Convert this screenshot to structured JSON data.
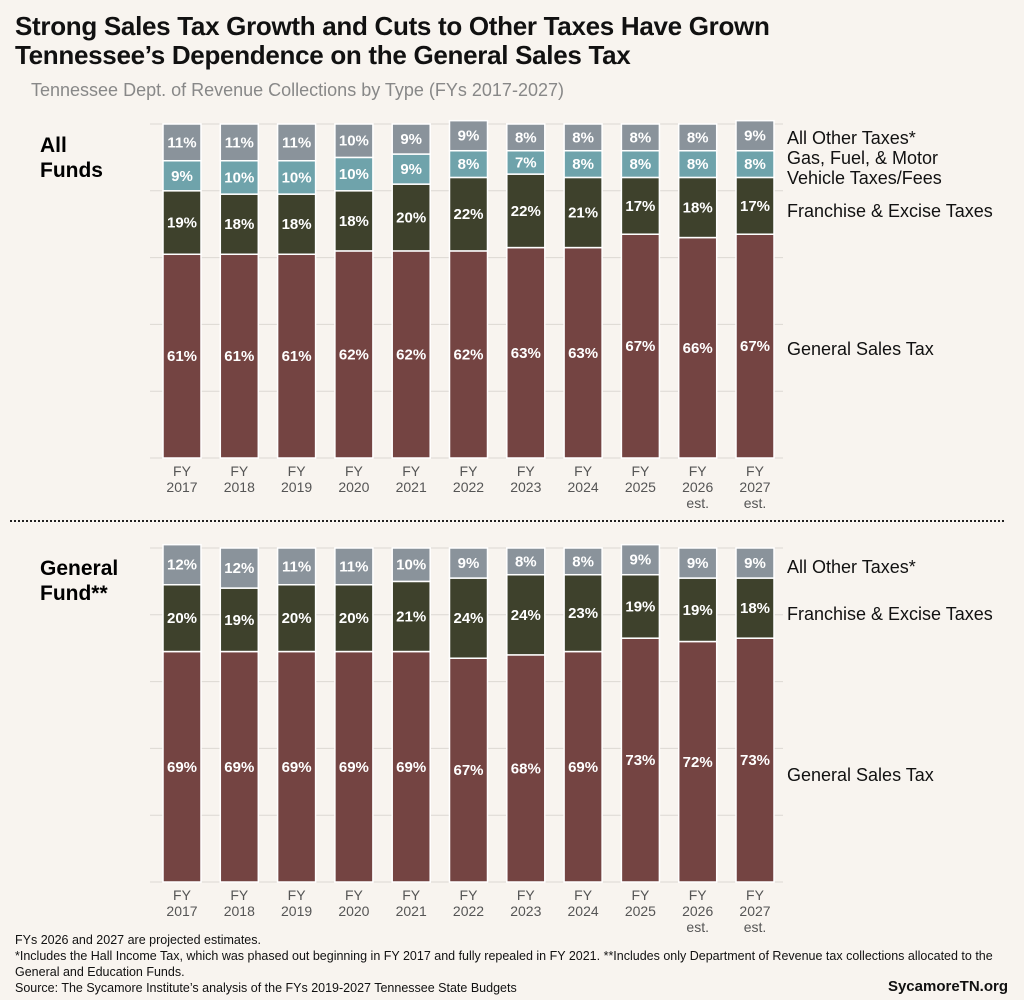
{
  "title_line1": "Strong Sales Tax Growth and Cuts to Other Taxes Have Grown",
  "title_line2": "Tennessee’s Dependence on the General Sales Tax",
  "subtitle": "Tennessee Dept. of Revenue Collections by Type (FYs 2017-2027)",
  "colors": {
    "sales": "#744442",
    "franchise": "#3e412c",
    "gas": "#6fa3ab",
    "other": "#8a939b",
    "background": "#f8f4ef"
  },
  "chart_data": [
    {
      "type": "bar",
      "stacked": true,
      "panel_label_line1": "All",
      "panel_label_line2": "Funds",
      "categories": [
        [
          "FY",
          "2017"
        ],
        [
          "FY",
          "2018"
        ],
        [
          "FY",
          "2019"
        ],
        [
          "FY",
          "2020"
        ],
        [
          "FY",
          "2021"
        ],
        [
          "FY",
          "2022"
        ],
        [
          "FY",
          "2023"
        ],
        [
          "FY",
          "2024"
        ],
        [
          "FY",
          "2025"
        ],
        [
          "FY",
          "2026",
          "est."
        ],
        [
          "FY",
          "2027",
          "est."
        ]
      ],
      "ylim": [
        0,
        100
      ],
      "grid": true,
      "series": [
        {
          "name": "General Sales Tax",
          "key": "sales",
          "values": [
            61,
            61,
            61,
            62,
            62,
            62,
            63,
            63,
            67,
            66,
            67
          ]
        },
        {
          "name": "Franchise & Excise Taxes",
          "key": "franchise",
          "values": [
            19,
            18,
            18,
            18,
            20,
            22,
            22,
            21,
            17,
            18,
            17
          ]
        },
        {
          "name": "Gas, Fuel, & Motor Vehicle Taxes/Fees",
          "key": "gas",
          "values": [
            9,
            10,
            10,
            10,
            9,
            8,
            7,
            8,
            8,
            8,
            8
          ]
        },
        {
          "name": "All Other Taxes*",
          "key": "other",
          "values": [
            11,
            11,
            11,
            10,
            9,
            9,
            8,
            8,
            8,
            8,
            9
          ]
        }
      ],
      "legend_labels": {
        "other": "All Other Taxes*",
        "gas_line1": "Gas, Fuel, & Motor",
        "gas_line2": "Vehicle Taxes/Fees",
        "franchise": "Franchise & Excise Taxes",
        "sales": "General Sales Tax"
      }
    },
    {
      "type": "bar",
      "stacked": true,
      "panel_label_line1": "General",
      "panel_label_line2": "Fund**",
      "categories": [
        [
          "FY",
          "2017"
        ],
        [
          "FY",
          "2018"
        ],
        [
          "FY",
          "2019"
        ],
        [
          "FY",
          "2020"
        ],
        [
          "FY",
          "2021"
        ],
        [
          "FY",
          "2022"
        ],
        [
          "FY",
          "2023"
        ],
        [
          "FY",
          "2024"
        ],
        [
          "FY",
          "2025"
        ],
        [
          "FY",
          "2026",
          "est."
        ],
        [
          "FY",
          "2027",
          "est."
        ]
      ],
      "ylim": [
        0,
        100
      ],
      "grid": true,
      "series": [
        {
          "name": "General Sales Tax",
          "key": "sales",
          "values": [
            69,
            69,
            69,
            69,
            69,
            67,
            68,
            69,
            73,
            72,
            73
          ]
        },
        {
          "name": "Franchise & Excise Taxes",
          "key": "franchise",
          "values": [
            20,
            19,
            20,
            20,
            21,
            24,
            24,
            23,
            19,
            19,
            18
          ]
        },
        {
          "name": "All Other Taxes*",
          "key": "other",
          "values": [
            12,
            12,
            11,
            11,
            10,
            9,
            8,
            8,
            9,
            9,
            9
          ]
        }
      ],
      "legend_labels": {
        "other": "All Other Taxes*",
        "franchise": "Franchise & Excise Taxes",
        "sales": "General Sales Tax"
      }
    }
  ],
  "footnotes": [
    "FYs 2026 and 2027 are projected estimates.",
    "*Includes the Hall Income Tax, which was phased out beginning in FY 2017 and fully repealed in FY 2021. **Includes only Department of Revenue tax collections allocated to the General and Education Funds.",
    "Source: The Sycamore Institute’s analysis of the FYs 2019-2027 Tennessee State Budgets"
  ],
  "brand": "SycamoreTN.org"
}
